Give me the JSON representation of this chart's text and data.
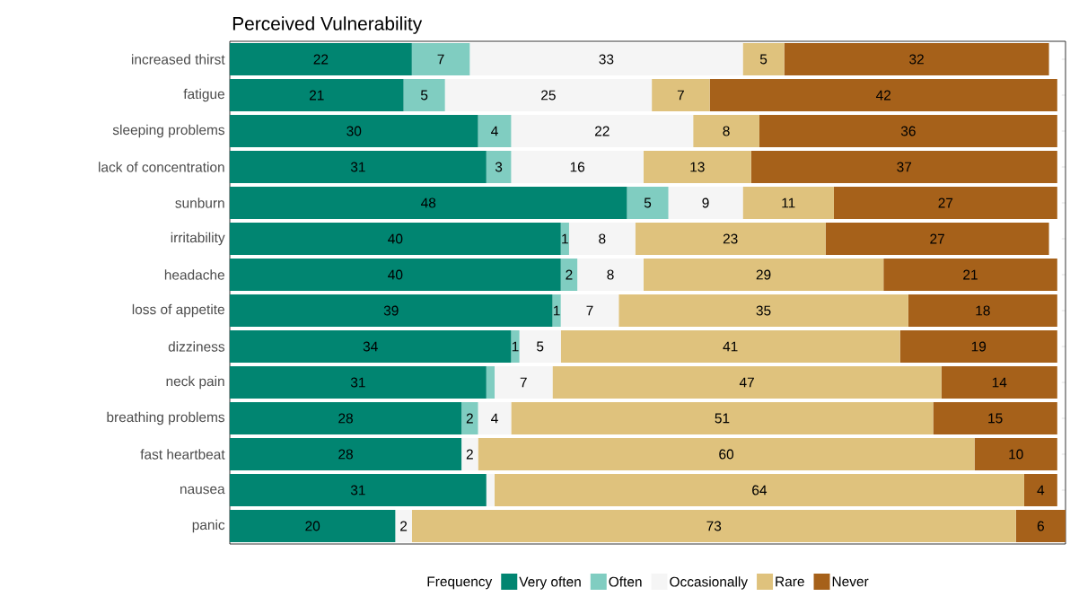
{
  "chart_data": {
    "type": "bar",
    "orientation": "horizontal",
    "stacked": true,
    "title": "Perceived Vulnerability",
    "legend_title": "Frequency",
    "legend": "bottom",
    "tick_labels": "y",
    "categories": [
      "increased thirst",
      "fatigue",
      "sleeping problems",
      "lack of concentration",
      "sunburn",
      "irritability",
      "headache",
      "loss of appetite",
      "dizziness",
      "neck pain",
      "breathing problems",
      "fast heartbeat",
      "nausea",
      "panic"
    ],
    "series": [
      {
        "name": "Very often",
        "color": "#018571",
        "values": [
          22,
          21,
          30,
          31,
          48,
          40,
          40,
          39,
          34,
          31,
          28,
          28,
          31,
          20
        ],
        "value_labels": [
          "22",
          "21",
          "30",
          "31",
          "48",
          "40",
          "40",
          "39",
          "34",
          "31",
          "28",
          "28",
          "31",
          "20"
        ]
      },
      {
        "name": "Often",
        "color": "#80cdc1",
        "values": [
          7,
          5,
          4,
          3,
          5,
          1,
          2,
          1,
          1,
          1,
          2,
          0,
          0,
          0
        ],
        "value_labels": [
          "7",
          "5",
          "4",
          "3",
          "5",
          "1",
          "2",
          "1",
          "1",
          null,
          "2",
          null,
          null,
          null
        ]
      },
      {
        "name": "Occasionally",
        "color": "#f5f5f5",
        "values": [
          33,
          25,
          22,
          16,
          9,
          8,
          8,
          7,
          5,
          7,
          4,
          2,
          1,
          2
        ],
        "value_labels": [
          "33",
          "25",
          "22",
          "16",
          "9",
          "8",
          "8",
          "7",
          "5",
          "7",
          "4",
          "2",
          null,
          "2"
        ]
      },
      {
        "name": "Rare",
        "color": "#dfc27d",
        "values": [
          5,
          7,
          8,
          13,
          11,
          23,
          29,
          35,
          41,
          47,
          51,
          60,
          64,
          73
        ],
        "value_labels": [
          "5",
          "7",
          "8",
          "13",
          "11",
          "23",
          "29",
          "35",
          "41",
          "47",
          "51",
          "60",
          "64",
          "73"
        ]
      },
      {
        "name": "Never",
        "color": "#a6611a",
        "values": [
          32,
          42,
          36,
          37,
          27,
          27,
          21,
          18,
          19,
          14,
          15,
          10,
          4,
          6
        ],
        "value_labels": [
          "32",
          "42",
          "36",
          "37",
          "27",
          "27",
          "21",
          "18",
          "19",
          "14",
          "15",
          "10",
          "4",
          "6"
        ]
      }
    ]
  }
}
